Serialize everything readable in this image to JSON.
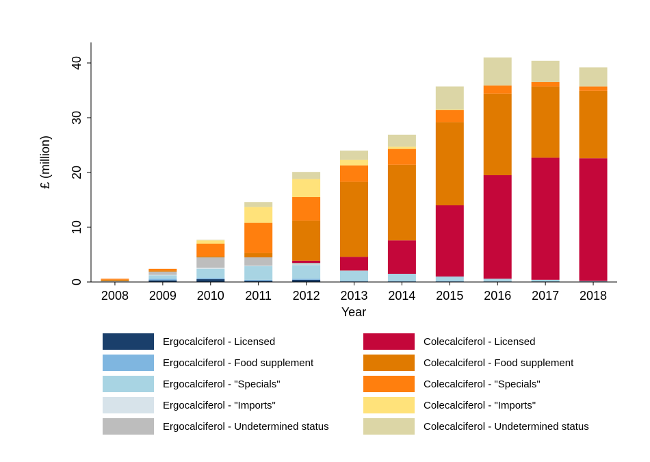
{
  "chart_data": {
    "type": "bar",
    "stacked": true,
    "title": "",
    "xlabel": "Year",
    "ylabel": "£ (million)",
    "ylim": [
      0,
      44
    ],
    "yticks": [
      0,
      10,
      20,
      30,
      40
    ],
    "categories": [
      "2008",
      "2009",
      "2010",
      "2011",
      "2012",
      "2013",
      "2014",
      "2015",
      "2016",
      "2017",
      "2018"
    ],
    "series": [
      {
        "name": "Ergocalciferol - Licensed",
        "color": "#1a3f6b",
        "values": [
          0,
          0.3,
          0.5,
          0.2,
          0.4,
          0.1,
          0.1,
          0.1,
          0.1,
          0.1,
          0.1
        ]
      },
      {
        "name": "Ergocalciferol - Food supplement",
        "color": "#7fb6e0",
        "values": [
          0,
          0.3,
          0.2,
          0.2,
          0.2,
          0.1,
          0.1,
          0.1,
          0,
          0,
          0
        ]
      },
      {
        "name": "Ergocalciferol - \"Specials\"",
        "color": "#a8d4e3",
        "values": [
          0.1,
          0.6,
          1.7,
          2.5,
          2.5,
          1.8,
          1.3,
          0.8,
          0.5,
          0.3,
          0.1
        ]
      },
      {
        "name": "Ergocalciferol - \"Imports\"",
        "color": "#d7e3ea",
        "values": [
          0,
          0.1,
          0.2,
          0.1,
          0.1,
          0,
          0,
          0,
          0,
          0,
          0
        ]
      },
      {
        "name": "Ergocalciferol - Undetermined status",
        "color": "#bdbdbd",
        "values": [
          0.1,
          0.6,
          1.9,
          1.5,
          0.3,
          0.1,
          0,
          0,
          0,
          0,
          0
        ]
      },
      {
        "name": "Colecalciferol - Licensed",
        "color": "#c4073a",
        "values": [
          0,
          0,
          0,
          0,
          0.4,
          2.5,
          6.1,
          13.0,
          18.9,
          22.3,
          22.4
        ]
      },
      {
        "name": "Colecalciferol - Food supplement",
        "color": "#e07a00",
        "values": [
          0.2,
          0.2,
          0.2,
          0.8,
          7.3,
          13.7,
          13.8,
          15.2,
          14.9,
          13.0,
          12.3
        ]
      },
      {
        "name": "Colecalciferol - \"Specials\"",
        "color": "#ff7f0e",
        "values": [
          0.2,
          0.3,
          2.3,
          5.5,
          4.3,
          3.0,
          2.9,
          2.2,
          1.5,
          0.8,
          0.8
        ]
      },
      {
        "name": "Colecalciferol - \"Imports\"",
        "color": "#ffe27a",
        "values": [
          0,
          0,
          0.6,
          2.9,
          3.3,
          1.0,
          0.4,
          0.1,
          0,
          0,
          0
        ]
      },
      {
        "name": "Colecalciferol - Undetermined status",
        "color": "#dcd6a6",
        "values": [
          0,
          0,
          0.1,
          0.9,
          1.3,
          1.7,
          2.2,
          4.2,
          5.1,
          3.9,
          3.5
        ]
      }
    ]
  }
}
